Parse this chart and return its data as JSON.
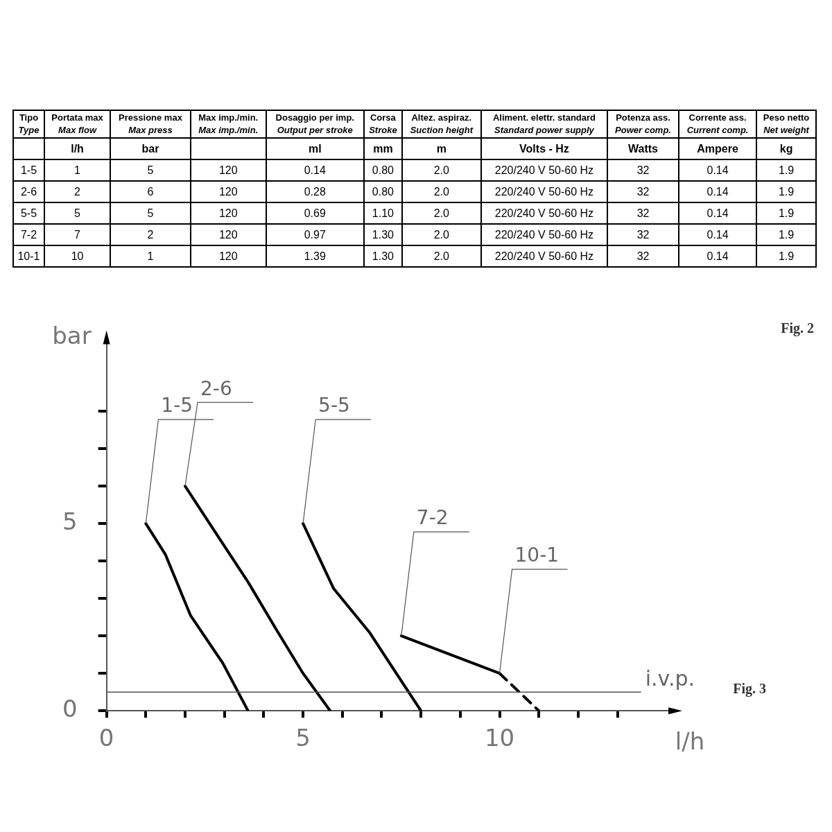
{
  "chart_data": [
    {
      "type": "other",
      "categories": [
        "Tipo\nType",
        "Portata max\nMax flow",
        "Pressione max\nMax press",
        "Max imp./min.\nMax imp./min.",
        "Dosaggio per imp.\nOutput per stroke",
        "Corsa\nStroke",
        "Altez. aspiraz.\nSuction height",
        "Aliment. elettr. standard\nStandard power supply",
        "Potenza ass.\nPower comp.",
        "Corrente ass.\nCurrent comp.",
        "Peso netto\nNet weight"
      ],
      "annotations": [
        null,
        "l/h",
        "bar",
        null,
        "ml",
        "mm",
        "m",
        "Volts - Hz",
        "Watts",
        "Ampere",
        "kg",
        "1-5",
        "1",
        "5",
        "120",
        "0.14",
        "0.80",
        "2.0",
        "220/240 V  50-60 Hz",
        "32",
        "0.14",
        "1.9",
        "2-6",
        "2",
        "6",
        "120",
        "0.28",
        "0.80",
        "2.0",
        "220/240 V  50-60 Hz",
        "32",
        "0.14",
        "1.9",
        "5-5",
        "5",
        "5",
        "120",
        "0.69",
        "1.10",
        "2.0",
        "220/240 V  50-60 Hz",
        "32",
        "0.14",
        "1.9",
        "7-2",
        "7",
        "2",
        "120",
        "0.97",
        "1.30",
        "2.0",
        "220/240 V  50-60 Hz",
        "32",
        "0.14",
        "1.9",
        "10-1",
        "10",
        "1",
        "120",
        "1.39",
        "1.30",
        "2.0",
        "220/240 V  50-60 Hz",
        "32",
        "0.14",
        "1.9"
      ]
    },
    {
      "type": "line",
      "xlabel": "l/h",
      "ylabel": "bar",
      "xlim": [
        0,
        14.4
      ],
      "ylim": [
        0,
        9.9
      ],
      "xticks": [
        0,
        {
          "value": 1,
          "label": null
        },
        {
          "value": 2,
          "label": null
        },
        {
          "value": 3,
          "label": null
        },
        {
          "value": 4,
          "label": null
        },
        5,
        {
          "value": 6,
          "label": null
        },
        {
          "value": 7,
          "label": null
        },
        {
          "value": 8,
          "label": null
        },
        {
          "value": 9,
          "label": null
        },
        10,
        {
          "value": 11,
          "label": null
        },
        {
          "value": 12,
          "label": null
        },
        {
          "value": 13,
          "label": null
        }
      ],
      "yticks": [
        0,
        {
          "value": 1,
          "label": null
        },
        {
          "value": 2,
          "label": null
        },
        {
          "value": 3,
          "label": null
        },
        {
          "value": 4,
          "label": null
        },
        5,
        {
          "value": 6,
          "label": null
        },
        {
          "value": 7,
          "label": null
        },
        {
          "value": 8,
          "label": null
        }
      ],
      "grid": false,
      "legend": false,
      "marker": "none",
      "series": [
        {
          "name": "1-5",
          "color": "#000000",
          "x": [
            1,
            1.5,
            2.14,
            2.96,
            3.6
          ],
          "values": [
            5,
            4.17,
            2.54,
            1.27,
            0
          ]
        },
        {
          "name": "2-6",
          "color": "#000000",
          "x": [
            2,
            2.86,
            3.6,
            4.32,
            5,
            5.69
          ],
          "values": [
            6,
            4.62,
            3.44,
            2.17,
            1,
            0
          ]
        },
        {
          "name": "5-5",
          "color": "#000000",
          "x": [
            5,
            5.78,
            6.7,
            7.43,
            8
          ],
          "values": [
            5,
            3.26,
            2.08,
            0.91,
            0
          ]
        },
        {
          "name": "7-2",
          "color": "#000000",
          "x": [
            7.5,
            10
          ],
          "values": [
            2,
            1
          ]
        },
        {
          "name": "10-1",
          "color": "#000000",
          "x": [
            10,
            11
          ],
          "values": [
            1,
            0
          ],
          "line_style": "dashed"
        }
      ],
      "ref_lines": [
        {
          "axis": "y",
          "value": 0.5,
          "label": "i.v.p.",
          "color": "#555555"
        }
      ],
      "annotations": [
        "Fig. 2",
        "Fig. 3"
      ]
    }
  ]
}
